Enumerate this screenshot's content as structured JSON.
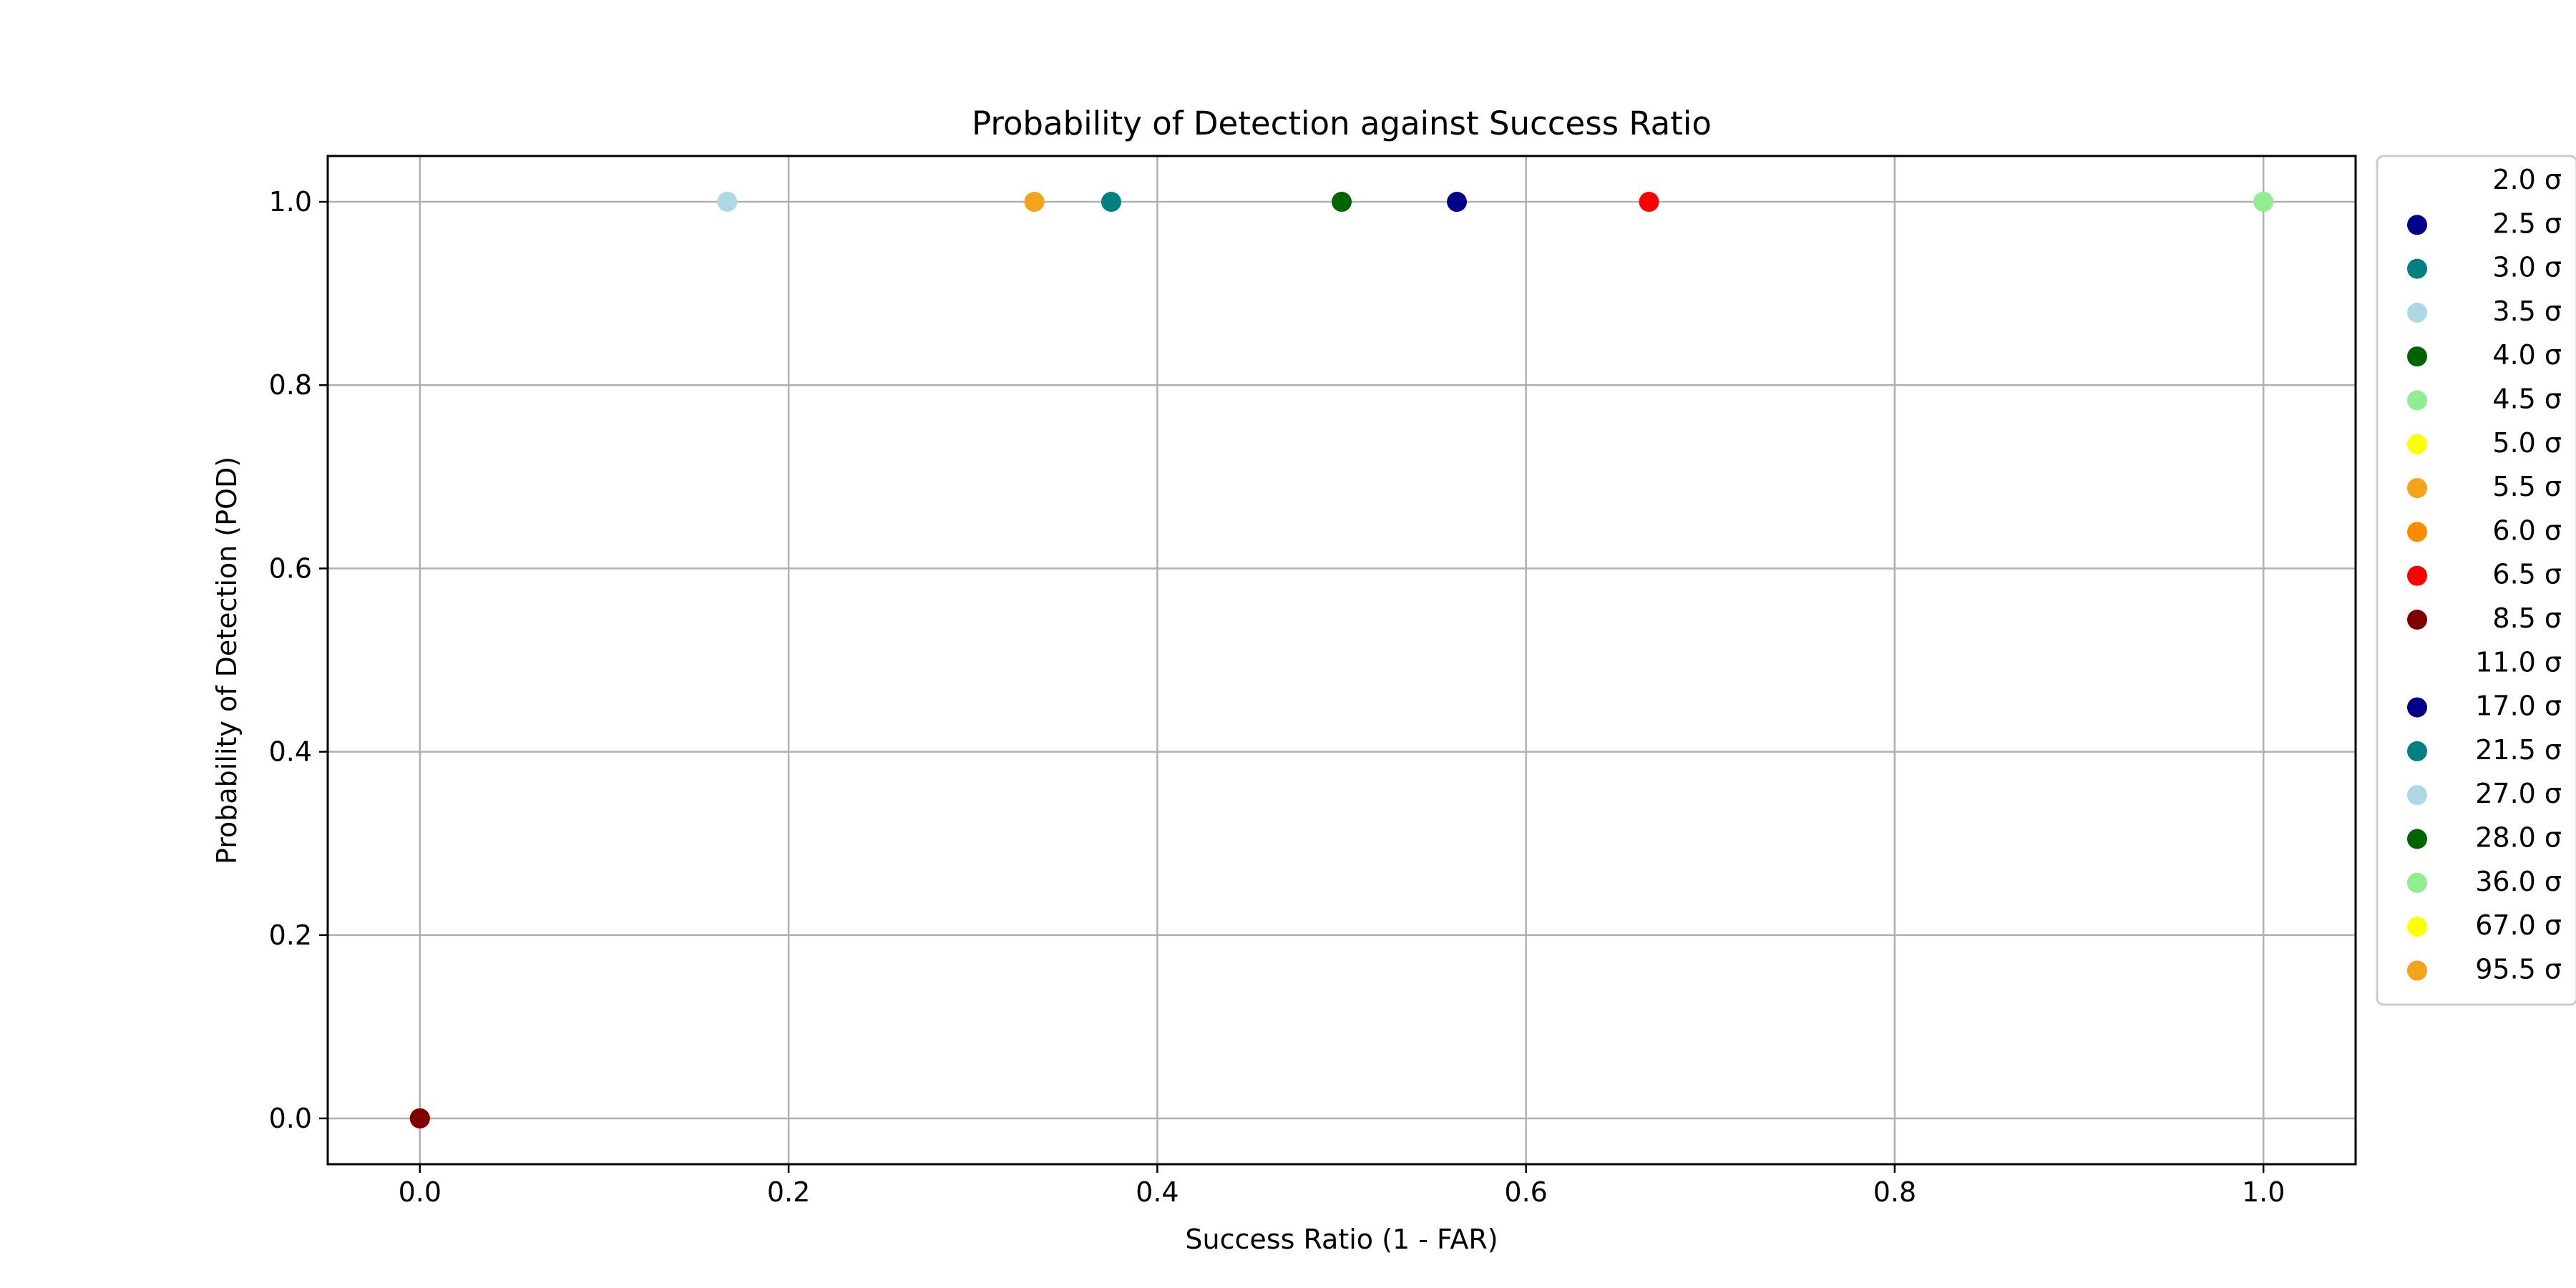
{
  "chart_data": {
    "type": "scatter",
    "title": "Probability of Detection against Success Ratio",
    "xlabel": "Success Ratio (1 - FAR)",
    "ylabel": "Probability of Detection (POD)",
    "xlim": [
      -0.05,
      1.05
    ],
    "ylim": [
      -0.05,
      1.05
    ],
    "xticks": [
      0.0,
      0.2,
      0.4,
      0.6,
      0.8,
      1.0
    ],
    "yticks": [
      0.0,
      0.2,
      0.4,
      0.6,
      0.8,
      1.0
    ],
    "xtick_labels": [
      "0.0",
      "0.2",
      "0.4",
      "0.6",
      "0.8",
      "1.0"
    ],
    "ytick_labels": [
      "0.0",
      "0.2",
      "0.4",
      "0.6",
      "0.8",
      "1.0"
    ],
    "grid": true,
    "legend_position": "outside-right",
    "series": [
      {
        "name": "2.0 σ",
        "color": "#ffffff",
        "x": [
          0.0
        ],
        "y": [
          0.0
        ]
      },
      {
        "name": "2.5 σ",
        "color": "#00008b",
        "x": [
          0.0
        ],
        "y": [
          0.0
        ]
      },
      {
        "name": "3.0 σ",
        "color": "#008080",
        "x": [
          0.0
        ],
        "y": [
          0.0
        ]
      },
      {
        "name": "3.5 σ",
        "color": "#add8e6",
        "x": [
          0.0
        ],
        "y": [
          0.0
        ]
      },
      {
        "name": "4.0 σ",
        "color": "#006400",
        "x": [
          0.0
        ],
        "y": [
          0.0
        ]
      },
      {
        "name": "4.5 σ",
        "color": "#90ee90",
        "x": [
          0.0
        ],
        "y": [
          0.0
        ]
      },
      {
        "name": "5.0 σ",
        "color": "#ffff00",
        "x": [
          0.0
        ],
        "y": [
          0.0
        ]
      },
      {
        "name": "5.5 σ",
        "color": "#f5a31a",
        "x": [
          0.0
        ],
        "y": [
          0.0
        ]
      },
      {
        "name": "6.0 σ",
        "color": "#ff8c00",
        "x": [
          0.0
        ],
        "y": [
          0.0
        ]
      },
      {
        "name": "6.5 σ",
        "color": "#ff0000",
        "x": [
          0.0
        ],
        "y": [
          0.0
        ]
      },
      {
        "name": "8.5 σ",
        "color": "#800000",
        "x": [
          0.0
        ],
        "y": [
          0.0
        ]
      },
      {
        "name": "11.0 σ",
        "color": "#ffffff",
        "x": [],
        "y": []
      },
      {
        "name": "17.0 σ",
        "color": "#00008b",
        "x": [
          0.5625
        ],
        "y": [
          1.0
        ]
      },
      {
        "name": "21.5 σ",
        "color": "#008080",
        "x": [
          0.375
        ],
        "y": [
          1.0
        ]
      },
      {
        "name": "27.0 σ",
        "color": "#add8e6",
        "x": [
          0.1667
        ],
        "y": [
          1.0
        ]
      },
      {
        "name": "28.0 σ",
        "color": "#006400",
        "x": [
          0.5
        ],
        "y": [
          1.0
        ]
      },
      {
        "name": "36.0 σ",
        "color": "#90ee90",
        "x": [
          1.0
        ],
        "y": [
          1.0
        ]
      },
      {
        "name": "67.0 σ",
        "color": "#ffff00",
        "x": [],
        "y": []
      },
      {
        "name": "95.5 σ",
        "color": "#f5a31a",
        "x": [
          0.3333
        ],
        "y": [
          1.0
        ]
      }
    ],
    "extra_points": [
      {
        "color": "#ff0000",
        "x": 0.6667,
        "y": 1.0
      }
    ]
  }
}
